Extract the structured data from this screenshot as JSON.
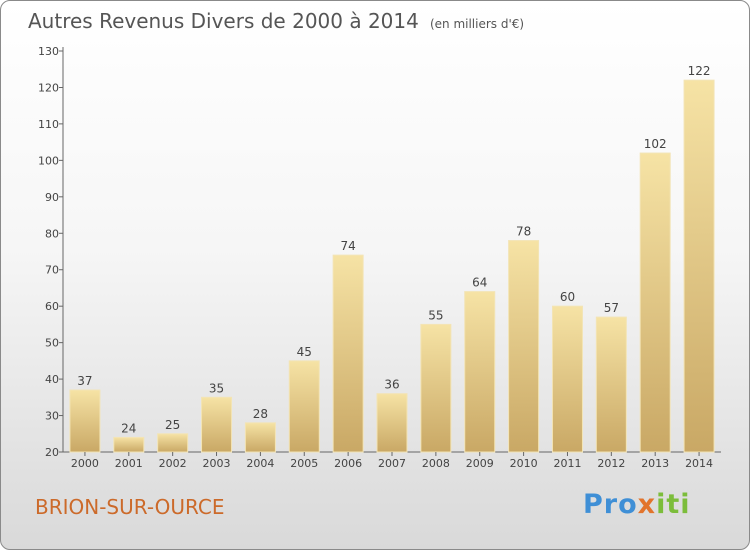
{
  "title": "Autres Revenus Divers de 2000 à 2014",
  "unit": "(en milliers d'€)",
  "commune": "BRION-SUR-OURCE",
  "logo": {
    "part1": "Pro",
    "part2": "x",
    "part3": "iti"
  },
  "colors": {
    "bar": "#e8cd87",
    "bar_light": "#f6e3a5",
    "bar_dark": "#c9a865",
    "commune_text": "#cc6a2a"
  },
  "chart_data": {
    "type": "bar",
    "categories": [
      "2000",
      "2001",
      "2002",
      "2003",
      "2004",
      "2005",
      "2006",
      "2007",
      "2008",
      "2009",
      "2010",
      "2011",
      "2012",
      "2013",
      "2014"
    ],
    "values": [
      37,
      24,
      25,
      35,
      28,
      45,
      74,
      36,
      55,
      64,
      78,
      60,
      57,
      102,
      122
    ],
    "ylim": [
      20,
      130
    ],
    "yticks": [
      20,
      30,
      40,
      50,
      60,
      70,
      80,
      90,
      100,
      110,
      120,
      130
    ],
    "grid": false,
    "data_labels": true
  }
}
